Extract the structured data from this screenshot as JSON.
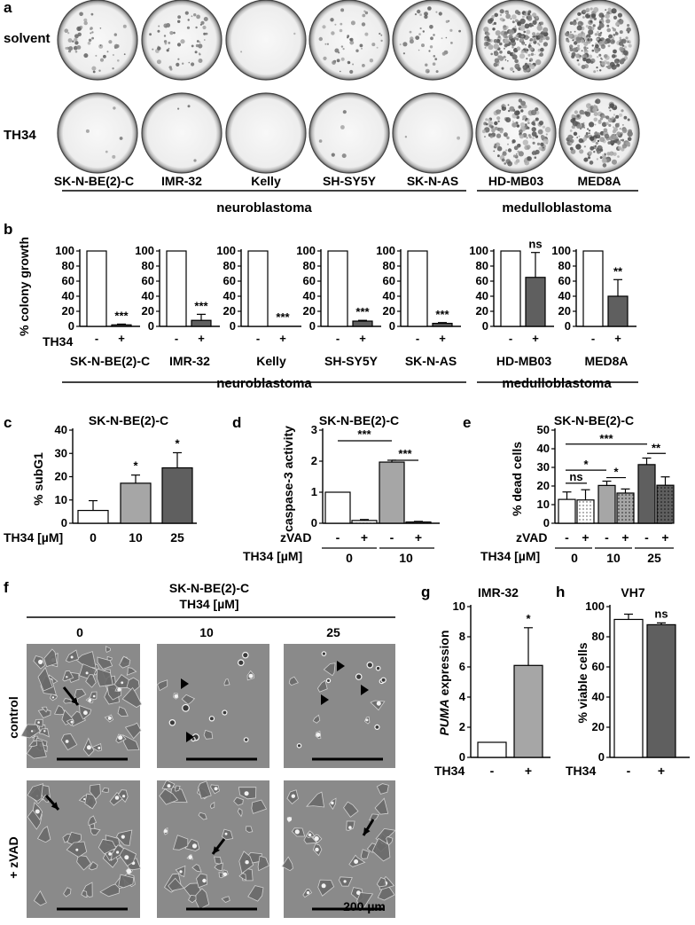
{
  "panel_a": {
    "letter": "a",
    "rows": [
      "solvent",
      "TH34"
    ],
    "cell_lines": [
      "SK-N-BE(2)-C",
      "IMR-32",
      "Kelly",
      "SH-SY5Y",
      "SK-N-AS",
      "HD-MB03",
      "MED8A"
    ],
    "groups": [
      "neuroblastoma",
      "medulloblastoma"
    ]
  },
  "panel_b": {
    "letter": "b",
    "ylabel": "% colony growth",
    "yticks": [
      "0",
      "20",
      "40",
      "60",
      "80",
      "100"
    ],
    "treatment_label": "TH34",
    "minus": "-",
    "plus": "+",
    "cell_lines": [
      "SK-N-BE(2)-C",
      "IMR-32",
      "Kelly",
      "SH-SY5Y",
      "SK-N-AS",
      "HD-MB03",
      "MED8A"
    ],
    "groups": [
      "neuroblastoma",
      "medulloblastoma"
    ]
  },
  "panel_c": {
    "letter": "c",
    "title": "SK-N-BE(2)-C",
    "ylabel": "% subG1",
    "yticks": [
      "0",
      "10",
      "20",
      "30",
      "40"
    ],
    "xprefix": "TH34 [µM]",
    "xticks": [
      "0",
      "10",
      "25"
    ]
  },
  "panel_d": {
    "letter": "d",
    "title": "SK-N-BE(2)-C",
    "ylabel": "caspase-3 activity",
    "yticks": [
      "0",
      "1",
      "2",
      "3"
    ],
    "row1_label": "zVAD",
    "row2_label": "TH34 [µM]",
    "minus": "-",
    "plus": "+",
    "doses": [
      "0",
      "10"
    ]
  },
  "panel_e": {
    "letter": "e",
    "title": "SK-N-BE(2)-C",
    "ylabel": "% dead cells",
    "yticks": [
      "0",
      "10",
      "20",
      "30",
      "40",
      "50"
    ],
    "row1_label": "zVAD",
    "row2_label": "TH34 [µM]",
    "minus": "-",
    "plus": "+",
    "doses": [
      "0",
      "10",
      "25"
    ]
  },
  "panel_f": {
    "letter": "f",
    "title": "SK-N-BE(2)-C",
    "subtitle": "TH34 [µM]",
    "doses": [
      "0",
      "10",
      "25"
    ],
    "rows": [
      "control",
      "+ zVAD"
    ],
    "scalebar": "200 µm"
  },
  "panel_g": {
    "letter": "g",
    "title": "IMR-32",
    "ylabel_italic": "PUMA",
    "ylabel_rest": " expression",
    "yticks": [
      "0",
      "2",
      "4",
      "6",
      "8",
      "10"
    ],
    "xlabel": "TH34",
    "minus": "-",
    "plus": "+"
  },
  "panel_h": {
    "letter": "h",
    "title": "VH7",
    "ylabel": "% viable cells",
    "yticks": [
      "0",
      "20",
      "40",
      "60",
      "80",
      "100"
    ],
    "xlabel": "TH34",
    "minus": "-",
    "plus": "+"
  },
  "colors": {
    "white": "#ffffff",
    "light_gray": "#a6a6a6",
    "dark_gray": "#5f5f5f",
    "plate_bg": "#f3f3f3",
    "micro_bg": "#8a8a8a"
  },
  "chart_data": [
    {
      "id": "b",
      "type": "bar",
      "ylabel": "% colony growth",
      "ylim": [
        0,
        100
      ],
      "categories": [
        "SK-N-BE(2)-C",
        "IMR-32",
        "Kelly",
        "SH-SY5Y",
        "SK-N-AS",
        "HD-MB03",
        "MED8A"
      ],
      "series": [
        {
          "name": "-",
          "values": [
            100,
            100,
            100,
            100,
            100,
            100,
            100
          ]
        },
        {
          "name": "+",
          "values": [
            2,
            8,
            0,
            7,
            4,
            65,
            40
          ],
          "errors": [
            1,
            8,
            0,
            1,
            1,
            33,
            22
          ]
        }
      ],
      "annotations": [
        "***",
        "***",
        "***",
        "***",
        "***",
        "ns",
        "**"
      ]
    },
    {
      "id": "c",
      "type": "bar",
      "title": "SK-N-BE(2)-C",
      "ylabel": "% subG1",
      "ylim": [
        0,
        40
      ],
      "categories": [
        "0",
        "10",
        "25"
      ],
      "values": [
        5.5,
        17.2,
        23.8
      ],
      "errors": [
        4.2,
        3.5,
        6.5
      ],
      "annotations": [
        "",
        "*",
        "*"
      ]
    },
    {
      "id": "d",
      "type": "bar",
      "title": "SK-N-BE(2)-C",
      "ylabel": "caspase-3 activity",
      "ylim": [
        0,
        3
      ],
      "categories": [
        "0 -",
        "0 +",
        "10 -",
        "10 +"
      ],
      "values": [
        1.0,
        0.09,
        1.97,
        0.04
      ],
      "errors": [
        0,
        0.03,
        0.06,
        0.02
      ],
      "annotations": [
        "***",
        "***"
      ]
    },
    {
      "id": "e",
      "type": "bar",
      "title": "SK-N-BE(2)-C",
      "ylabel": "% dead cells",
      "ylim": [
        0,
        50
      ],
      "categories": [
        "0 -",
        "0 +",
        "10 -",
        "10 +",
        "25 -",
        "25 +"
      ],
      "values": [
        12.8,
        12.5,
        20.3,
        16.2,
        31.5,
        20.4
      ],
      "errors": [
        4,
        5.5,
        2.3,
        2.2,
        3.5,
        4.5
      ],
      "annotations": [
        "ns",
        "*",
        "*",
        "***",
        "**"
      ]
    },
    {
      "id": "g",
      "type": "bar",
      "title": "IMR-32",
      "ylabel": "PUMA expression",
      "ylim": [
        0,
        10
      ],
      "categories": [
        "-",
        "+"
      ],
      "values": [
        1.0,
        6.1
      ],
      "errors": [
        0,
        2.5
      ],
      "annotations": [
        "",
        "*"
      ]
    },
    {
      "id": "h",
      "type": "bar",
      "title": "VH7",
      "ylabel": "% viable cells",
      "ylim": [
        0,
        100
      ],
      "categories": [
        "-",
        "+"
      ],
      "values": [
        91.5,
        88
      ],
      "errors": [
        3.5,
        1.2
      ],
      "annotations": [
        "",
        "ns"
      ]
    }
  ]
}
